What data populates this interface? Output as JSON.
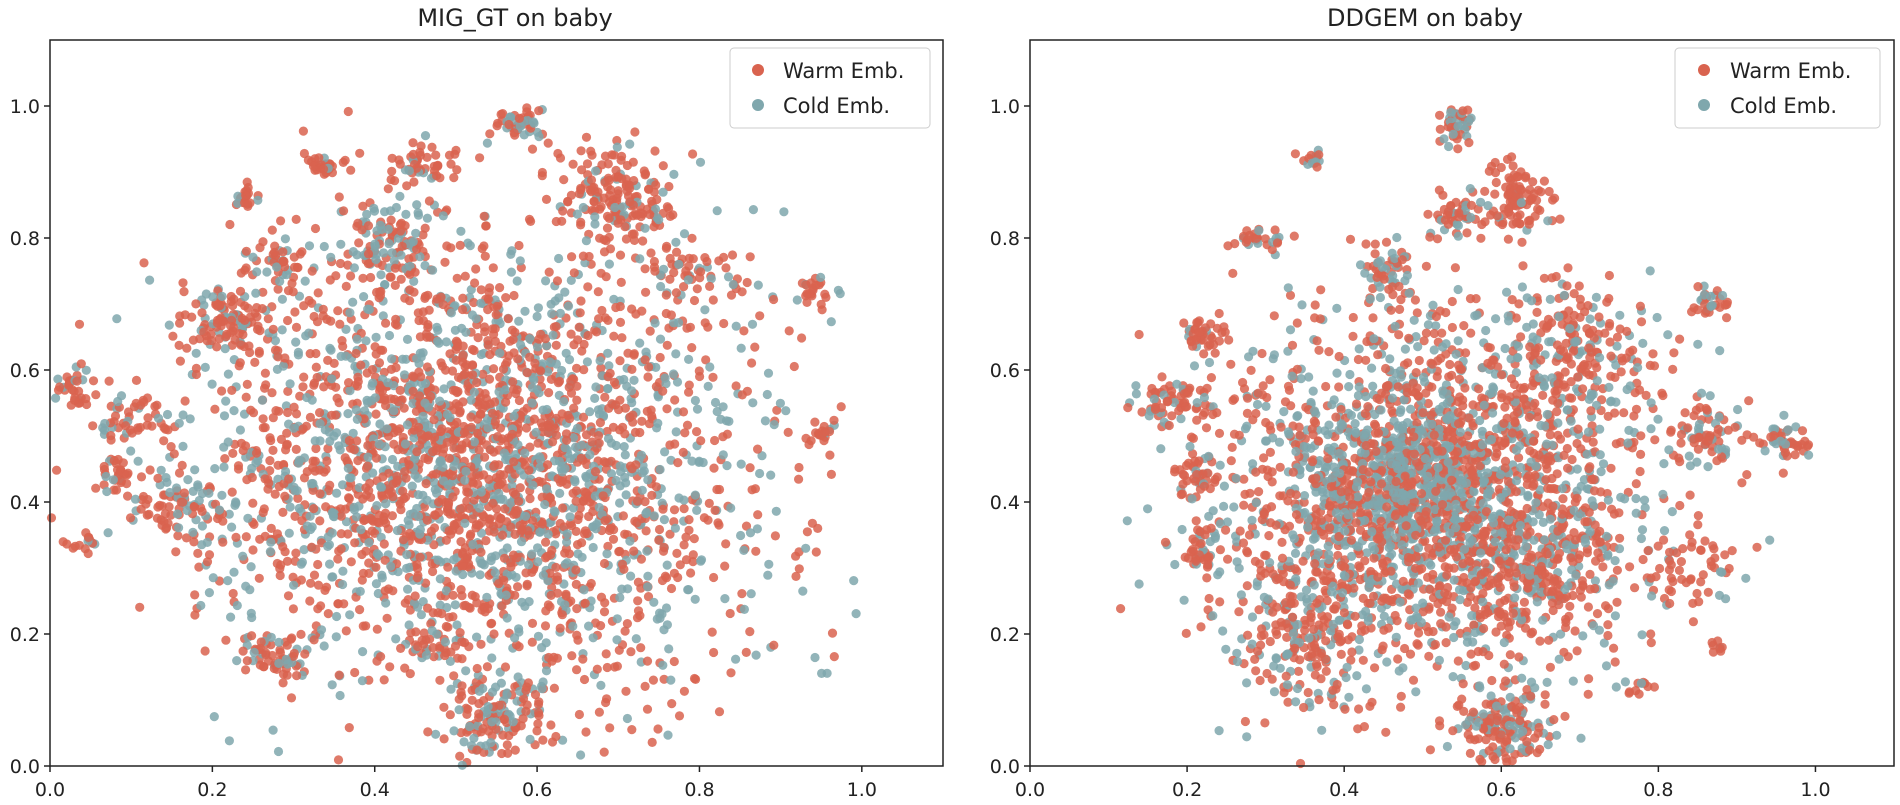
{
  "colors": {
    "warm": "#d9634f",
    "cold": "#7fa7ad"
  },
  "chart_data": [
    {
      "type": "scatter",
      "title": "MIG_GT on baby",
      "xlim": [
        0.0,
        1.1
      ],
      "ylim": [
        0.0,
        1.1
      ],
      "xticks": [
        "0.0",
        "0.2",
        "0.4",
        "0.6",
        "0.8",
        "1.0"
      ],
      "yticks": [
        "0.0",
        "0.2",
        "0.4",
        "0.6",
        "0.8",
        "1.0"
      ],
      "legend_position": "top-right",
      "grid": false,
      "legend": [
        {
          "label": "Warm Emb.",
          "color": "#d9634f"
        },
        {
          "label": "Cold Emb.",
          "color": "#7fa7ad"
        }
      ],
      "clusters": [
        {
          "x": 0.5,
          "y": 0.47,
          "sx": 0.16,
          "sy": 0.15,
          "n": 2200,
          "cold": 0.42
        },
        {
          "x": 0.7,
          "y": 0.86,
          "sx": 0.035,
          "sy": 0.04,
          "n": 170,
          "cold": 0.1
        },
        {
          "x": 0.58,
          "y": 0.97,
          "sx": 0.015,
          "sy": 0.015,
          "n": 50,
          "cold": 0.25
        },
        {
          "x": 0.42,
          "y": 0.79,
          "sx": 0.03,
          "sy": 0.035,
          "n": 120,
          "cold": 0.4
        },
        {
          "x": 0.46,
          "y": 0.91,
          "sx": 0.02,
          "sy": 0.015,
          "n": 45,
          "cold": 0.15
        },
        {
          "x": 0.34,
          "y": 0.91,
          "sx": 0.012,
          "sy": 0.01,
          "n": 28,
          "cold": 0.2
        },
        {
          "x": 0.24,
          "y": 0.86,
          "sx": 0.01,
          "sy": 0.01,
          "n": 20,
          "cold": 0.2
        },
        {
          "x": 0.22,
          "y": 0.68,
          "sx": 0.03,
          "sy": 0.025,
          "n": 100,
          "cold": 0.2
        },
        {
          "x": 0.28,
          "y": 0.76,
          "sx": 0.02,
          "sy": 0.02,
          "n": 50,
          "cold": 0.3
        },
        {
          "x": 0.03,
          "y": 0.57,
          "sx": 0.015,
          "sy": 0.012,
          "n": 30,
          "cold": 0.2
        },
        {
          "x": 0.1,
          "y": 0.53,
          "sx": 0.02,
          "sy": 0.02,
          "n": 45,
          "cold": 0.3
        },
        {
          "x": 0.08,
          "y": 0.44,
          "sx": 0.012,
          "sy": 0.015,
          "n": 30,
          "cold": 0.15
        },
        {
          "x": 0.04,
          "y": 0.34,
          "sx": 0.008,
          "sy": 0.006,
          "n": 14,
          "cold": 0.2
        },
        {
          "x": 0.16,
          "y": 0.4,
          "sx": 0.03,
          "sy": 0.03,
          "n": 70,
          "cold": 0.3
        },
        {
          "x": 0.28,
          "y": 0.16,
          "sx": 0.02,
          "sy": 0.02,
          "n": 60,
          "cold": 0.3
        },
        {
          "x": 0.55,
          "y": 0.07,
          "sx": 0.03,
          "sy": 0.035,
          "n": 130,
          "cold": 0.35
        },
        {
          "x": 0.47,
          "y": 0.18,
          "sx": 0.015,
          "sy": 0.012,
          "n": 28,
          "cold": 0.2
        },
        {
          "x": 0.94,
          "y": 0.72,
          "sx": 0.015,
          "sy": 0.012,
          "n": 25,
          "cold": 0.2
        },
        {
          "x": 0.95,
          "y": 0.5,
          "sx": 0.012,
          "sy": 0.01,
          "n": 20,
          "cold": 0.3
        },
        {
          "x": 0.8,
          "y": 0.75,
          "sx": 0.03,
          "sy": 0.02,
          "n": 50,
          "cold": 0.2
        },
        {
          "x": 0.62,
          "y": 0.38,
          "sx": 0.18,
          "sy": 0.22,
          "n": 700,
          "cold": 0.35
        }
      ]
    },
    {
      "type": "scatter",
      "title": "DDGEM on baby",
      "xlim": [
        0.0,
        1.1
      ],
      "ylim": [
        0.0,
        1.1
      ],
      "xticks": [
        "0.0",
        "0.2",
        "0.4",
        "0.6",
        "0.8",
        "1.0"
      ],
      "yticks": [
        "0.0",
        "0.2",
        "0.4",
        "0.6",
        "0.8",
        "1.0"
      ],
      "legend_position": "top-right",
      "grid": false,
      "legend": [
        {
          "label": "Warm Emb.",
          "color": "#d9634f"
        },
        {
          "label": "Cold Emb.",
          "color": "#7fa7ad"
        }
      ],
      "clusters": [
        {
          "x": 0.5,
          "y": 0.42,
          "sx": 0.13,
          "sy": 0.13,
          "n": 2100,
          "cold": 0.42
        },
        {
          "x": 0.47,
          "y": 0.43,
          "sx": 0.05,
          "sy": 0.05,
          "n": 350,
          "cold": 0.7
        },
        {
          "x": 0.6,
          "y": 0.06,
          "sx": 0.03,
          "sy": 0.035,
          "n": 160,
          "cold": 0.35
        },
        {
          "x": 0.54,
          "y": 0.97,
          "sx": 0.012,
          "sy": 0.015,
          "n": 40,
          "cold": 0.3
        },
        {
          "x": 0.62,
          "y": 0.86,
          "sx": 0.02,
          "sy": 0.03,
          "n": 90,
          "cold": 0.1
        },
        {
          "x": 0.55,
          "y": 0.83,
          "sx": 0.02,
          "sy": 0.02,
          "n": 50,
          "cold": 0.4
        },
        {
          "x": 0.46,
          "y": 0.75,
          "sx": 0.02,
          "sy": 0.02,
          "n": 50,
          "cold": 0.3
        },
        {
          "x": 0.29,
          "y": 0.8,
          "sx": 0.015,
          "sy": 0.01,
          "n": 30,
          "cold": 0.3
        },
        {
          "x": 0.36,
          "y": 0.92,
          "sx": 0.008,
          "sy": 0.008,
          "n": 15,
          "cold": 0.3
        },
        {
          "x": 0.22,
          "y": 0.65,
          "sx": 0.015,
          "sy": 0.015,
          "n": 40,
          "cold": 0.3
        },
        {
          "x": 0.18,
          "y": 0.55,
          "sx": 0.025,
          "sy": 0.015,
          "n": 60,
          "cold": 0.3
        },
        {
          "x": 0.21,
          "y": 0.44,
          "sx": 0.015,
          "sy": 0.015,
          "n": 35,
          "cold": 0.2
        },
        {
          "x": 0.22,
          "y": 0.33,
          "sx": 0.015,
          "sy": 0.02,
          "n": 45,
          "cold": 0.3
        },
        {
          "x": 0.87,
          "y": 0.7,
          "sx": 0.012,
          "sy": 0.012,
          "n": 30,
          "cold": 0.3
        },
        {
          "x": 0.96,
          "y": 0.49,
          "sx": 0.02,
          "sy": 0.015,
          "n": 45,
          "cold": 0.35
        },
        {
          "x": 0.86,
          "y": 0.5,
          "sx": 0.03,
          "sy": 0.03,
          "n": 70,
          "cold": 0.35
        },
        {
          "x": 0.85,
          "y": 0.3,
          "sx": 0.03,
          "sy": 0.03,
          "n": 50,
          "cold": 0.3
        },
        {
          "x": 0.77,
          "y": 0.12,
          "sx": 0.01,
          "sy": 0.005,
          "n": 12,
          "cold": 0.3
        },
        {
          "x": 0.87,
          "y": 0.18,
          "sx": 0.005,
          "sy": 0.005,
          "n": 8,
          "cold": 0.2
        },
        {
          "x": 0.7,
          "y": 0.62,
          "sx": 0.05,
          "sy": 0.06,
          "n": 200,
          "cold": 0.3
        },
        {
          "x": 0.35,
          "y": 0.2,
          "sx": 0.05,
          "sy": 0.06,
          "n": 200,
          "cold": 0.35
        },
        {
          "x": 0.65,
          "y": 0.3,
          "sx": 0.06,
          "sy": 0.07,
          "n": 250,
          "cold": 0.3
        }
      ]
    }
  ]
}
